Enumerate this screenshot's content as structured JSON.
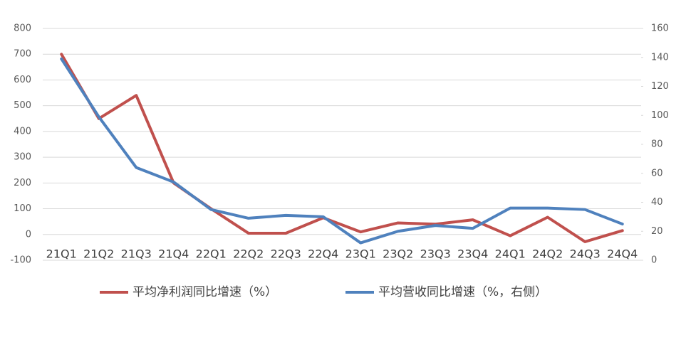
{
  "chart_data": {
    "type": "line",
    "categories": [
      "21Q1",
      "21Q2",
      "21Q3",
      "21Q4",
      "22Q1",
      "22Q2",
      "22Q3",
      "22Q4",
      "23Q1",
      "23Q2",
      "23Q3",
      "23Q4",
      "24Q1",
      "24Q2",
      "24Q3",
      "24Q4"
    ],
    "series": [
      {
        "name": "平均净利润同比增速（%）",
        "color": "#c0504d",
        "values": [
          700,
          450,
          540,
          200,
          100,
          5,
          5,
          65,
          10,
          45,
          40,
          57,
          -5,
          67,
          -28,
          15
        ]
      },
      {
        "name": "平均营收同比增速（%，右侧）",
        "color": "#4f81bd",
        "axis": "y2",
        "values": [
          139,
          99,
          64,
          54,
          35,
          29,
          31,
          30,
          12,
          20,
          24,
          22,
          36,
          36,
          35,
          25
        ]
      }
    ],
    "ylim": [
      -100,
      800
    ],
    "yticks": [
      -100,
      0,
      100,
      200,
      300,
      400,
      500,
      600,
      700,
      800
    ],
    "y2lim": [
      0,
      160
    ],
    "y2ticks": [
      0,
      20,
      40,
      60,
      80,
      100,
      120,
      140,
      160
    ],
    "grid": true
  }
}
